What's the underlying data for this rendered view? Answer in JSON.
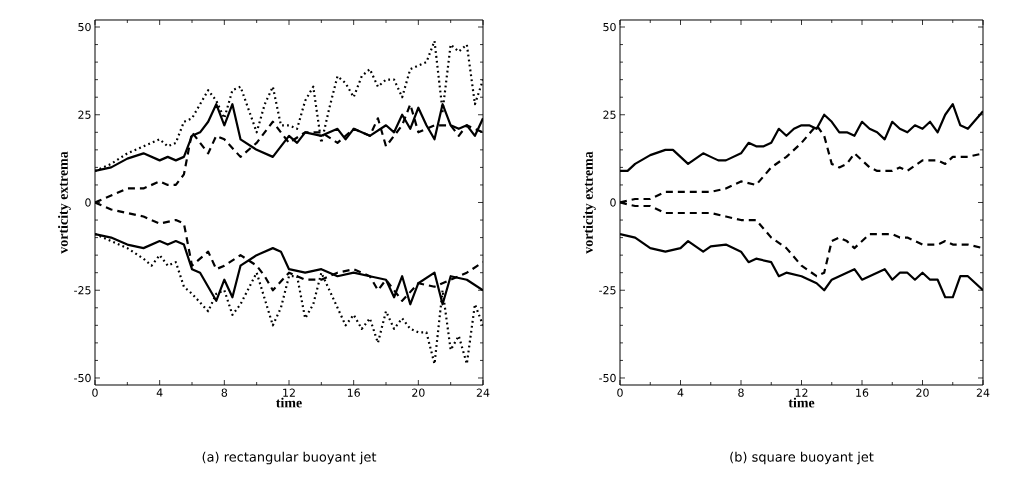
{
  "chart_data": [
    {
      "type": "line",
      "xlabel": "time",
      "ylabel": "vorticity extrema",
      "annotations": [
        "(a) rectangular buoyant jet"
      ],
      "xlim": [
        0,
        24
      ],
      "ylim": [
        -52,
        52
      ],
      "xticks": [
        0,
        4,
        8,
        12,
        16,
        20,
        24
      ],
      "yticks": [
        -50,
        -25,
        0,
        25,
        50
      ],
      "marker": "none",
      "series": [
        {
          "color": "#000000",
          "line_style": "solid",
          "x": [
            0,
            1,
            2,
            3,
            4,
            4.5,
            5,
            5.5,
            6,
            6.5,
            7,
            7.5,
            8,
            8.5,
            9,
            10,
            11,
            12,
            12.5,
            13,
            14,
            15,
            15.5,
            16,
            17,
            18,
            18.5,
            19,
            19.5,
            20,
            20.5,
            21,
            21.5,
            22,
            22.5,
            23,
            23.5,
            24
          ],
          "values": [
            9,
            10,
            12.5,
            14,
            12,
            13,
            12,
            13,
            19,
            20,
            23,
            28,
            22,
            28,
            18,
            15,
            13,
            19,
            17,
            20,
            19,
            21,
            18,
            21,
            19,
            22,
            20,
            25,
            21,
            27,
            22,
            18,
            28,
            22,
            21,
            22,
            19,
            24
          ]
        },
        {
          "color": "#000000",
          "line_style": "solid",
          "x": [
            0,
            1,
            2,
            3,
            4,
            4.5,
            5,
            5.5,
            6,
            6.5,
            7,
            7.5,
            8,
            8.5,
            9,
            10,
            11,
            11.5,
            12,
            13,
            14,
            15,
            16,
            17,
            18,
            18.5,
            19,
            19.5,
            20,
            21,
            21.5,
            22,
            23,
            24
          ],
          "values": [
            -9,
            -10,
            -12,
            -13,
            -11,
            -12,
            -11,
            -12,
            -19,
            -20,
            -24,
            -28,
            -22,
            -27,
            -18,
            -15,
            -13,
            -14,
            -19,
            -20,
            -19,
            -21,
            -20,
            -21,
            -22,
            -27,
            -21,
            -29,
            -23,
            -20,
            -29,
            -21,
            -22,
            -25
          ]
        },
        {
          "color": "#000000",
          "line_style": "dashed",
          "x": [
            0,
            1,
            2,
            3,
            4,
            4.5,
            5,
            5.5,
            6,
            6.5,
            7,
            7.5,
            8,
            9,
            10,
            11,
            11.5,
            12,
            13,
            14,
            15,
            16,
            17,
            17.5,
            18,
            19,
            19.5,
            20,
            21,
            22,
            22.5,
            23,
            24
          ],
          "values": [
            0,
            2,
            4,
            4,
            6,
            5,
            5,
            8,
            20,
            17,
            14,
            19,
            18,
            13,
            17,
            23,
            20,
            17,
            20,
            20,
            17,
            21,
            19,
            24,
            16,
            22,
            28,
            20,
            22,
            22,
            19,
            22,
            20
          ]
        },
        {
          "color": "#000000",
          "line_style": "dashed",
          "x": [
            0,
            1,
            2,
            3,
            4,
            5,
            5.5,
            6,
            6.5,
            7,
            7.5,
            8,
            9,
            10,
            10.5,
            11,
            12,
            13,
            14,
            15,
            16,
            17,
            17.5,
            18,
            19,
            20,
            21,
            22,
            23,
            24
          ],
          "values": [
            0,
            -2,
            -3,
            -4,
            -6,
            -5,
            -6,
            -18,
            -16,
            -14,
            -19,
            -18,
            -15,
            -18,
            -21,
            -25,
            -20,
            -22,
            -22,
            -20,
            -19,
            -21,
            -25,
            -22,
            -28,
            -23,
            -24,
            -22,
            -20,
            -17
          ]
        },
        {
          "color": "#000000",
          "line_style": "dotted",
          "x": [
            0,
            1,
            2,
            3,
            3.5,
            4,
            4.5,
            5,
            5.5,
            6,
            6.5,
            7,
            7.5,
            8,
            8.5,
            9,
            10,
            10.5,
            11,
            11.5,
            12,
            12.5,
            13,
            13.5,
            14,
            14.5,
            15,
            15.5,
            16,
            16.5,
            17,
            17.5,
            18,
            18.5,
            19,
            19.5,
            20,
            20.5,
            21,
            21.5,
            22,
            22.5,
            23,
            23.5,
            24
          ],
          "values": [
            9,
            11,
            14,
            16,
            17,
            18,
            16,
            17,
            23,
            24,
            28,
            32,
            29,
            24,
            32,
            33,
            20,
            28,
            33,
            22,
            22,
            21,
            29,
            33,
            17,
            27,
            36,
            34,
            30,
            36,
            38,
            33,
            35,
            35,
            30,
            38,
            39,
            40,
            46,
            26,
            45,
            43,
            45,
            28,
            35
          ]
        },
        {
          "color": "#000000",
          "line_style": "dotted",
          "x": [
            0,
            1,
            2,
            3,
            3.5,
            4,
            4.5,
            5,
            5.5,
            6,
            7,
            7.5,
            8,
            8.5,
            9,
            10,
            11,
            11.5,
            12,
            12.5,
            13,
            13.5,
            14,
            15,
            15.5,
            16,
            16.5,
            17,
            17.5,
            18,
            18.5,
            19,
            19.5,
            20,
            20.5,
            21,
            21.5,
            22,
            22.5,
            23,
            23.5,
            24
          ],
          "values": [
            -9,
            -11,
            -13,
            -16,
            -18,
            -15,
            -18,
            -17,
            -24,
            -26,
            -31,
            -26,
            -25,
            -32,
            -29,
            -20,
            -35,
            -30,
            -21,
            -21,
            -33,
            -29,
            -20,
            -30,
            -35,
            -32,
            -36,
            -33,
            -40,
            -31,
            -36,
            -33,
            -36,
            -37,
            -37,
            -46,
            -25,
            -42,
            -38,
            -46,
            -29,
            -35
          ]
        }
      ]
    },
    {
      "type": "line",
      "xlabel": "time",
      "ylabel": "vorticity extrema",
      "annotations": [
        "(b) square buoyant jet"
      ],
      "xlim": [
        0,
        24
      ],
      "ylim": [
        -52,
        52
      ],
      "xticks": [
        0,
        4,
        8,
        12,
        16,
        20,
        24
      ],
      "yticks": [
        -50,
        -25,
        0,
        25,
        50
      ],
      "marker": "none",
      "series": [
        {
          "color": "#000000",
          "line_style": "solid",
          "x": [
            0,
            0.5,
            1,
            2,
            3,
            3.5,
            4,
            4.5,
            5,
            5.5,
            6,
            6.5,
            7,
            8,
            8.5,
            9,
            9.5,
            10,
            10.5,
            11,
            11.5,
            12,
            12.5,
            13,
            13.5,
            14,
            14.5,
            15,
            15.5,
            16,
            16.5,
            17,
            17.5,
            18,
            18.5,
            19,
            19.5,
            20,
            20.5,
            21,
            21.5,
            22,
            22.5,
            23,
            24
          ],
          "values": [
            9,
            9,
            11,
            13.5,
            15,
            15,
            13,
            11,
            12.5,
            14,
            13,
            12,
            12,
            14,
            17,
            16,
            16,
            17,
            21,
            19,
            21,
            22,
            22,
            21,
            25,
            23,
            20,
            20,
            19,
            23,
            21,
            20,
            18,
            23,
            21,
            20,
            22,
            21,
            23,
            20,
            25,
            28,
            22,
            21,
            26
          ]
        },
        {
          "color": "#000000",
          "line_style": "solid",
          "x": [
            0,
            1,
            2,
            3,
            4,
            4.5,
            5,
            5.5,
            6,
            7,
            8,
            8.5,
            9,
            10,
            10.5,
            11,
            12,
            12.5,
            13,
            13.5,
            14,
            14.5,
            15,
            15.5,
            16,
            17,
            17.5,
            18,
            18.5,
            19,
            19.5,
            20,
            20.5,
            21,
            21.5,
            22,
            22.5,
            23,
            24
          ],
          "values": [
            -9,
            -10,
            -13,
            -14,
            -13,
            -11,
            -12.5,
            -14,
            -12.5,
            -12,
            -14,
            -17,
            -16,
            -17,
            -21,
            -20,
            -21,
            -22,
            -23,
            -25,
            -22,
            -21,
            -20,
            -19,
            -22,
            -20,
            -19,
            -22,
            -20,
            -20,
            -22,
            -20,
            -22,
            -22,
            -27,
            -27,
            -21,
            -21,
            -25
          ]
        },
        {
          "color": "#000000",
          "line_style": "dashed",
          "x": [
            0,
            1,
            2,
            3,
            4,
            5,
            6,
            7,
            8,
            9,
            10,
            11,
            12,
            13,
            13.5,
            14,
            14.5,
            15,
            15.5,
            16,
            16.5,
            17,
            18,
            18.5,
            19,
            20,
            21,
            21.5,
            22,
            23,
            24
          ],
          "values": [
            0,
            1,
            1,
            3,
            3,
            3,
            3,
            4,
            6,
            5,
            10,
            13,
            17,
            22,
            19,
            11,
            10,
            11,
            14,
            12,
            10,
            9,
            9,
            10,
            9,
            12,
            12,
            11,
            13,
            13,
            14
          ]
        },
        {
          "color": "#000000",
          "line_style": "dashed",
          "x": [
            0,
            1,
            2,
            3,
            4,
            5,
            6,
            7,
            8,
            9,
            10,
            11,
            12,
            13,
            13.5,
            14,
            14.5,
            15,
            15.5,
            16,
            16.5,
            17,
            18,
            18.5,
            19,
            20,
            21,
            21.5,
            22,
            23,
            24
          ],
          "values": [
            0,
            -1,
            -1,
            -3,
            -3,
            -3,
            -3,
            -4,
            -5,
            -5,
            -10,
            -13,
            -18,
            -21,
            -20,
            -11,
            -10,
            -11,
            -13,
            -11,
            -9,
            -9,
            -9,
            -10,
            -10,
            -12,
            -12,
            -11,
            -12,
            -12,
            -13
          ]
        }
      ]
    }
  ]
}
